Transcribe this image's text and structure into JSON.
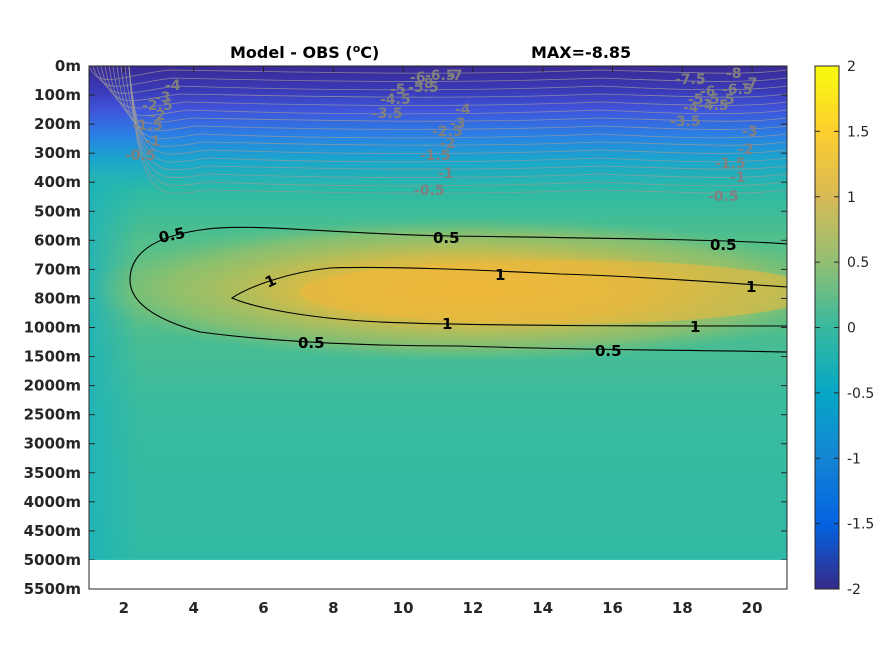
{
  "chart_data": {
    "type": "heatmap",
    "title_prefix": "Model - OBS (",
    "title_unit_sup": "o",
    "title_unit_suffix": "C)",
    "title_right": "MAX=-8.85",
    "x_ticks": [
      "2",
      "4",
      "6",
      "8",
      "10",
      "12",
      "14",
      "16",
      "18",
      "20"
    ],
    "x_tick_values": [
      2,
      4,
      6,
      8,
      10,
      12,
      14,
      16,
      18,
      20
    ],
    "xlim": [
      1,
      21
    ],
    "y_ticks": [
      "0m",
      "100m",
      "200m",
      "300m",
      "400m",
      "500m",
      "600m",
      "700m",
      "800m",
      "1000m",
      "1500m",
      "2000m",
      "2500m",
      "3000m",
      "3500m",
      "4000m",
      "4500m",
      "5000m",
      "5500m"
    ],
    "data_bottom_level": "5000m",
    "colorbar": {
      "ticks": [
        "2",
        "1.5",
        "1",
        "0.5",
        "0",
        "-0.5",
        "-1",
        "-1.5",
        "-2"
      ],
      "range": [
        -2,
        2
      ],
      "colormap": "parula",
      "colors": [
        "#352a87",
        "#0363e1",
        "#1485d4",
        "#06a7c6",
        "#38b99e",
        "#92bf73",
        "#d9ba56",
        "#fcce2e",
        "#f9fb0e"
      ]
    },
    "field_description_values": {
      "surface_min": -8.85,
      "warm_core_max": 1.2,
      "deep_value": 0.2
    },
    "contours_black": [
      {
        "level": "0.5",
        "labels": [
          "0.5",
          "0.5",
          "0.5",
          "0.5",
          "0.5"
        ]
      },
      {
        "level": "1",
        "labels": [
          "1",
          "1",
          "1",
          "1",
          "1"
        ]
      }
    ],
    "contours_gray_labels_left": [
      "-4",
      "-3",
      "-2.5",
      "-2",
      "-1.5",
      "-1",
      "-0.5"
    ],
    "contours_gray_labels_mid": [
      "-6",
      "-6.5",
      "-7",
      "-5",
      "-5.5",
      "-8",
      "-4.5",
      "-3.5",
      "-4",
      "-2.5",
      "-3",
      "-2",
      "-1.5",
      "-1",
      "-0.5"
    ],
    "contours_gray_labels_right": [
      "-7.5",
      "-8",
      "-6",
      "-6.5",
      "-7",
      "-5",
      "-5.5",
      "-4",
      "-4.5",
      "-3.5",
      "-3",
      "-2",
      "-1.5",
      "-1",
      "-0.5"
    ]
  }
}
